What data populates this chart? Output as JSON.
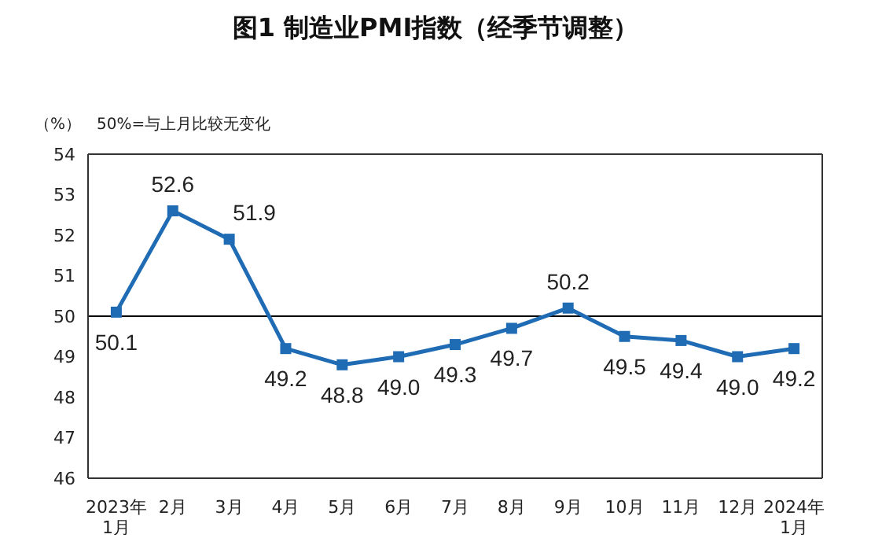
{
  "chart_data": {
    "type": "line",
    "title": "图1 制造业PMI指数（经季节调整）",
    "ylabel": "（%）",
    "annotations": [
      "50%=与上月比较无变化"
    ],
    "categories": [
      "2023年\n1月",
      "2月",
      "3月",
      "4月",
      "5月",
      "6月",
      "7月",
      "8月",
      "9月",
      "10月",
      "11月",
      "12月",
      "2024年\n1月"
    ],
    "series": [
      {
        "color": "#1f6cb5",
        "values": [
          50.1,
          52.6,
          51.9,
          49.2,
          48.8,
          49.0,
          49.3,
          49.7,
          50.2,
          49.5,
          49.4,
          49.0,
          49.2
        ],
        "value_labels": [
          "50.1",
          "52.6",
          "51.9",
          "49.2",
          "48.8",
          "49.0",
          "49.3",
          "49.7",
          "50.2",
          "49.5",
          "49.4",
          "49.0",
          "49.2"
        ]
      }
    ],
    "ylim": [
      46,
      54
    ],
    "yticks": [
      46,
      47,
      48,
      49,
      50,
      51,
      52,
      53,
      54
    ],
    "marker": "square",
    "line_style": "solid",
    "grid": false,
    "legend": false,
    "ref_lines": [
      {
        "axis": "y",
        "value": 50,
        "color": "#000000"
      }
    ]
  }
}
